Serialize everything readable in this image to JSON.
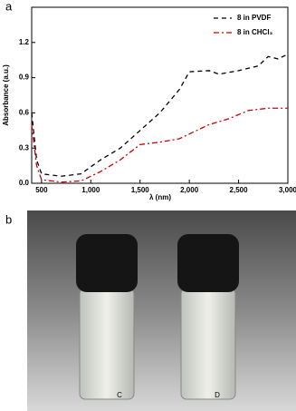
{
  "chart_data": {
    "type": "line",
    "xlabel": "λ (nm)",
    "ylabel": "Absorbance (a.u.)",
    "xlim": [
      400,
      3000
    ],
    "ylim": [
      0,
      1.5
    ],
    "xticks": [
      500,
      {
        "value": 1000,
        "label": "1,000"
      },
      {
        "value": 1500,
        "label": "1,500"
      },
      {
        "value": 2000,
        "label": "2,000"
      },
      {
        "value": 2500,
        "label": "2,500"
      },
      {
        "value": 3000,
        "label": "3,000"
      }
    ],
    "yticks": [
      {
        "value": 0,
        "label": "0.0"
      },
      {
        "value": 0.3,
        "label": "0.3"
      },
      {
        "value": 0.6,
        "label": "0.6"
      },
      {
        "value": 0.9,
        "label": "0.9"
      },
      {
        "value": 1.2,
        "label": "1.2"
      }
    ],
    "legend": "upper right",
    "series": [
      {
        "name": "8 in PVDF",
        "color": "#000000",
        "dash": "5,4",
        "x": [
          400,
          450,
          500,
          700,
          900,
          1100,
          1300,
          1500,
          1700,
          1900,
          2000,
          2200,
          2300,
          2500,
          2700,
          2800,
          2900,
          3000
        ],
        "values": [
          0.6,
          0.2,
          0.08,
          0.06,
          0.08,
          0.2,
          0.3,
          0.45,
          0.6,
          0.8,
          0.95,
          0.96,
          0.93,
          0.96,
          1.0,
          1.08,
          1.06,
          1.1
        ]
      },
      {
        "name": "8 in CHCl₃",
        "color": "#cc0000",
        "dash": "6,3,2,3",
        "x": [
          400,
          450,
          500,
          700,
          900,
          1100,
          1300,
          1500,
          1700,
          1900,
          2000,
          2200,
          2400,
          2600,
          2800,
          3000
        ],
        "values": [
          0.5,
          0.15,
          0.03,
          0.01,
          0.02,
          0.1,
          0.2,
          0.33,
          0.35,
          0.38,
          0.42,
          0.5,
          0.55,
          0.62,
          0.64,
          0.64
        ]
      }
    ]
  },
  "panel_labels": [
    "a",
    "b"
  ],
  "photo": {
    "labels": [
      "C",
      "D"
    ]
  }
}
